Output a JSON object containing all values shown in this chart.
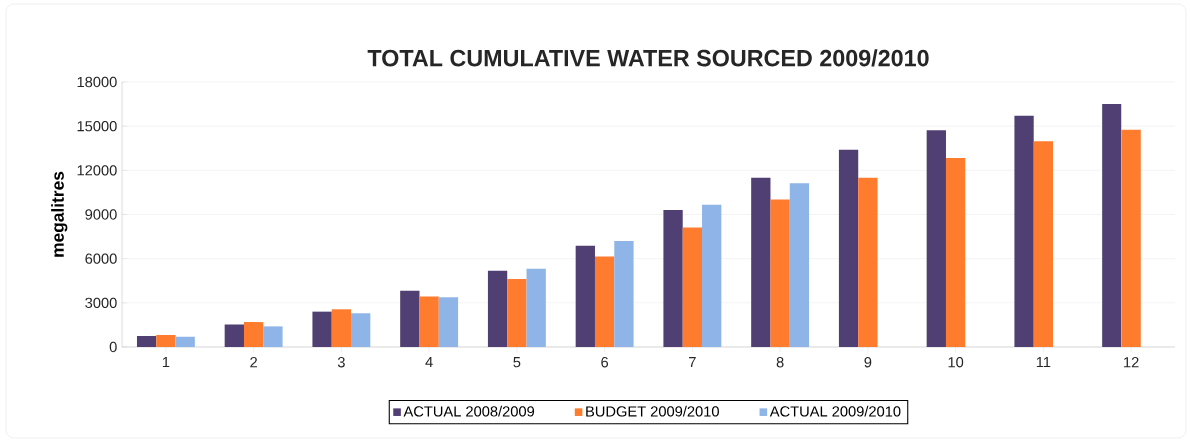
{
  "chart_data": {
    "type": "bar",
    "title": "TOTAL CUMULATIVE WATER SOURCED  2009/2010",
    "ylabel": "megalitres",
    "categories": [
      "1",
      "2",
      "3",
      "4",
      "5",
      "6",
      "7",
      "8",
      "9",
      "10",
      "11",
      "12"
    ],
    "series": [
      {
        "name": "ACTUAL 2008/2009",
        "color": "#4f3f73",
        "values": [
          740,
          1530,
          2400,
          3820,
          5170,
          6880,
          9300,
          11490,
          13390,
          14730,
          15710,
          16500
        ]
      },
      {
        "name": "BUDGET 2009/2010",
        "color": "#ff7b2e",
        "values": [
          820,
          1690,
          2560,
          3430,
          4610,
          6140,
          8120,
          10020,
          11490,
          12840,
          13970,
          14760
        ]
      },
      {
        "name": "ACTUAL 2009/2010",
        "color": "#8fb4e8",
        "values": [
          690,
          1400,
          2290,
          3370,
          5320,
          7200,
          9670,
          11120,
          null,
          null,
          null,
          null
        ]
      }
    ],
    "ylim": [
      0,
      18000
    ],
    "yticks": [
      0,
      3000,
      6000,
      9000,
      12000,
      15000,
      18000
    ],
    "grid": "y",
    "legend": "bottom"
  }
}
